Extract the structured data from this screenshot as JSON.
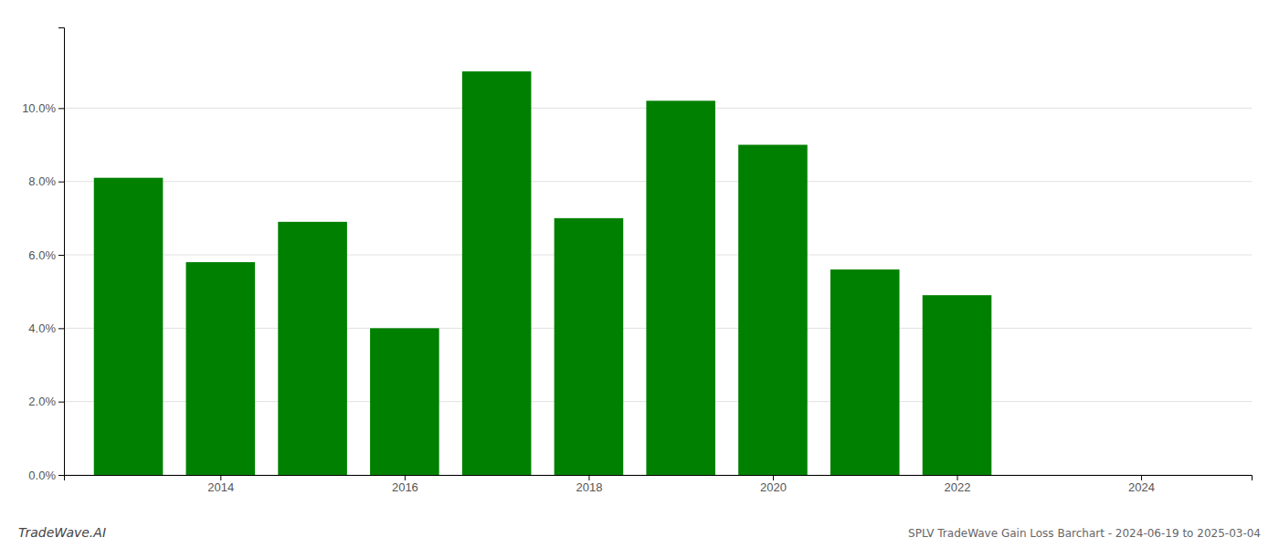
{
  "chart_data": {
    "type": "bar",
    "x": [
      2013,
      2014,
      2015,
      2016,
      2017,
      2018,
      2019,
      2020,
      2021,
      2022,
      2023
    ],
    "values": [
      0.081,
      0.058,
      0.069,
      0.04,
      0.11,
      0.07,
      0.102,
      0.09,
      0.056,
      0.049,
      0.0
    ],
    "color": "#008000",
    "xlim": [
      2012.3,
      2025.2
    ],
    "xticks": [
      2014,
      2016,
      2018,
      2020,
      2022,
      2024
    ],
    "ylim": [
      0.0,
      0.122
    ],
    "yticks": [
      {
        "value": 0.0,
        "label": "0.0%"
      },
      {
        "value": 0.02,
        "label": "2.0%"
      },
      {
        "value": 0.04,
        "label": "4.0%"
      },
      {
        "value": 0.06,
        "label": "6.0%"
      },
      {
        "value": 0.08,
        "label": "8.0%"
      },
      {
        "value": 0.1,
        "label": "10.0%"
      }
    ],
    "grid": true,
    "annotations": [
      "TradeWave.AI",
      "SPLV TradeWave Gain Loss Barchart - 2024-06-19 to 2025-03-04"
    ]
  }
}
